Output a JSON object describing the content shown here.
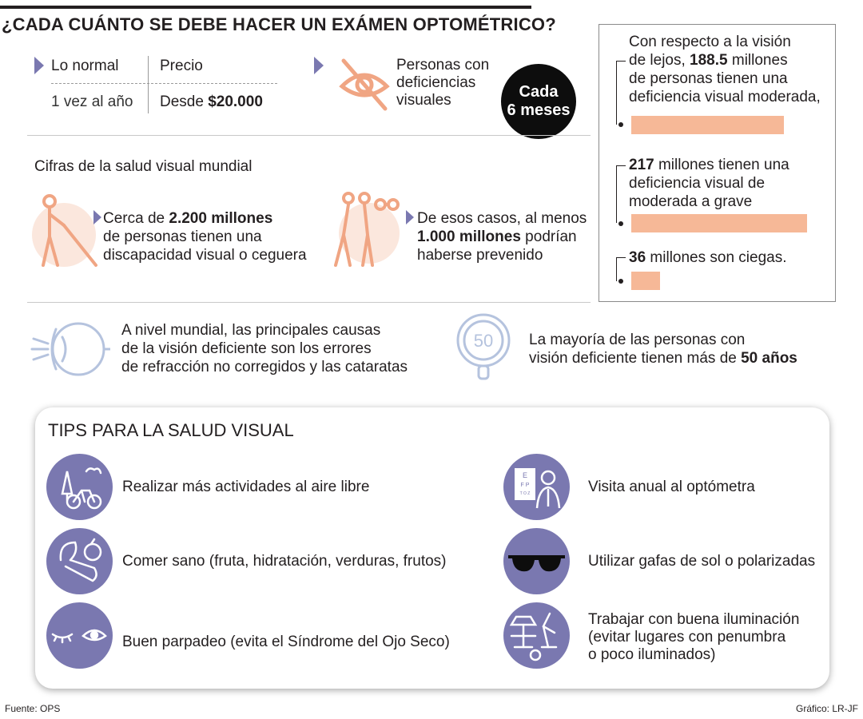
{
  "title": "¿CADA CUÁNTO SE DEBE HACER UN EXÁMEN OPTOMÉTRICO?",
  "pricing": {
    "col1_header": "Lo normal",
    "col1_value": "1 vez al año",
    "col2_header": "Precio",
    "col2_prefix": "Desde ",
    "col2_amount": "$20.000"
  },
  "deficiency": {
    "label_lines": [
      "Personas con",
      "deficiencias",
      "visuales"
    ],
    "badge": "Cada\n6 meses"
  },
  "panel": {
    "item1": {
      "line1": "Con respecto a la visión",
      "line2_pre": "de lejos, ",
      "line2_num": "188.5",
      "line2_post": " millones",
      "line3": "de personas tienen una",
      "line4": "deficiencia visual moderada,"
    },
    "item2": {
      "line1_num": "217",
      "line1_post": " millones tienen una",
      "line2": "deficiencia visual de",
      "line3": "moderada a grave"
    },
    "item3": {
      "num": "36",
      "post": " millones son ciegas."
    }
  },
  "chart_data": {
    "type": "bar",
    "categories": [
      "deficiencia visual moderada",
      "deficiencia visual de moderada a grave",
      "ciegas"
    ],
    "values": [
      188.5,
      217,
      36
    ],
    "ylabel": "millones"
  },
  "world": {
    "heading": "Cifras de la salud visual mundial",
    "stat1": {
      "pre": "Cerca de ",
      "num": "2.200 millones",
      "line2": "de personas tienen una",
      "line3": "discapacidad visual o ceguera"
    },
    "stat2": {
      "line1": "De esos casos, al menos",
      "num": "1.000 millones",
      "post": " podrían",
      "line3": "haberse prevenido"
    }
  },
  "causes": {
    "lines": [
      "A nivel mundial, las principales causas",
      "de la visión deficiente son los errores",
      "de refracción no corregidos y las cataratas"
    ]
  },
  "age": {
    "icon_number": "50",
    "line1": "La mayoría de las personas con",
    "line2_pre": "visión deficiente tienen más de ",
    "line2_bold": "50 años"
  },
  "tips": {
    "heading": "TIPS PARA LA SALUD VISUAL",
    "items": [
      {
        "text": "Realizar más actividades al aire libre",
        "icon": "outdoor-bike-icon"
      },
      {
        "text": "Comer sano (fruta, hidratación, verduras, frutos)",
        "icon": "vegetables-icon"
      },
      {
        "text": "Buen parpadeo (evita el Síndrome del Ojo Seco)",
        "icon": "blink-eye-icon"
      },
      {
        "text": "Visita anual al optómetra",
        "icon": "optometrist-icon"
      },
      {
        "text": "Utilizar gafas de sol o polarizadas",
        "icon": "sunglasses-icon"
      },
      {
        "lines": [
          "Trabajar con buena iluminación",
          "(evitar lugares con penumbra",
          "o poco iluminados)"
        ],
        "icon": "lamp-icon"
      }
    ]
  },
  "eye_chart_letters": [
    "E",
    "F P",
    "T O Z"
  ],
  "footer": {
    "source": "Fuente: OPS",
    "credit": "Gráfico: LR-JF"
  },
  "colors": {
    "accent": "#7a78b0",
    "bar": "#f6b897",
    "icon_peach": "#f0a583",
    "icon_circle_bg": "#fbe7dd",
    "line_blue": "#b5c3de"
  }
}
